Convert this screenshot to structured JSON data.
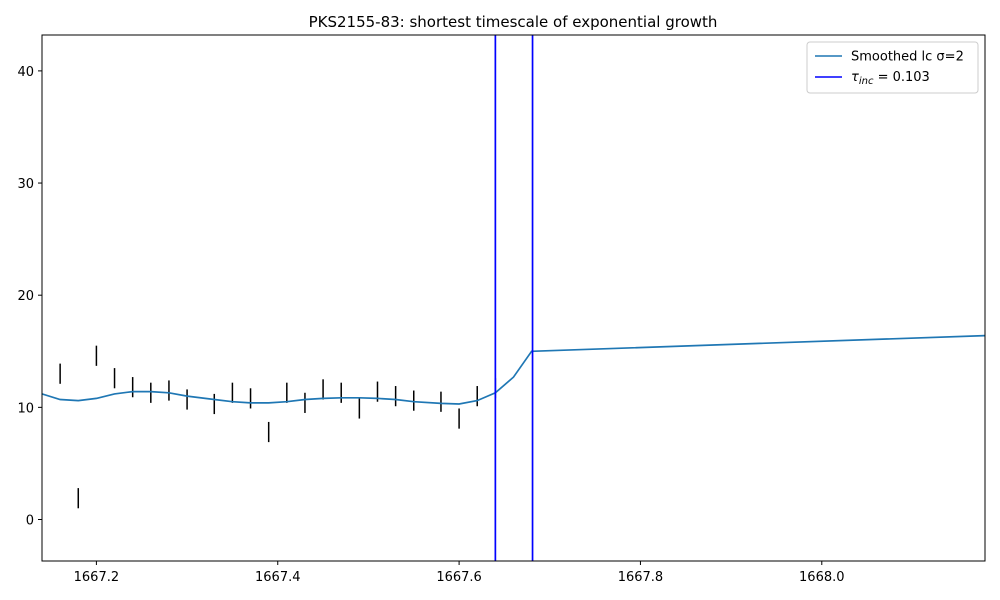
{
  "chart_data": {
    "type": "line",
    "title": "PKS2155-83: shortest timescale of exponential growth",
    "xlabel": "",
    "ylabel": "",
    "xlim": [
      1667.14,
      1668.18
    ],
    "ylim": [
      -3.7,
      43.2
    ],
    "x_ticks": [
      1667.2,
      1667.4,
      1667.6,
      1667.8,
      1668.0
    ],
    "x_tick_labels": [
      "1667.2",
      "1667.4",
      "1667.6",
      "1667.8",
      "1668.0"
    ],
    "y_ticks": [
      0,
      10,
      20,
      30,
      40
    ],
    "y_tick_labels": [
      "0",
      "10",
      "20",
      "30",
      "40"
    ],
    "legend_position": "top-right",
    "error_bars": {
      "color": "#000000",
      "points": [
        {
          "x": 1667.16,
          "low": 12.1,
          "high": 13.9
        },
        {
          "x": 1667.18,
          "low": 1.0,
          "high": 2.8
        },
        {
          "x": 1667.2,
          "low": 13.7,
          "high": 15.5
        },
        {
          "x": 1667.22,
          "low": 11.7,
          "high": 13.5
        },
        {
          "x": 1667.24,
          "low": 10.9,
          "high": 12.7
        },
        {
          "x": 1667.26,
          "low": 10.4,
          "high": 12.2
        },
        {
          "x": 1667.28,
          "low": 10.6,
          "high": 12.4
        },
        {
          "x": 1667.3,
          "low": 9.8,
          "high": 11.6
        },
        {
          "x": 1667.33,
          "low": 9.4,
          "high": 11.2
        },
        {
          "x": 1667.35,
          "low": 10.4,
          "high": 12.2
        },
        {
          "x": 1667.37,
          "low": 9.9,
          "high": 11.7
        },
        {
          "x": 1667.39,
          "low": 6.9,
          "high": 8.7
        },
        {
          "x": 1667.41,
          "low": 10.4,
          "high": 12.2
        },
        {
          "x": 1667.43,
          "low": 9.5,
          "high": 11.3
        },
        {
          "x": 1667.45,
          "low": 10.7,
          "high": 12.5
        },
        {
          "x": 1667.47,
          "low": 10.4,
          "high": 12.2
        },
        {
          "x": 1667.49,
          "low": 9.0,
          "high": 10.8
        },
        {
          "x": 1667.51,
          "low": 10.5,
          "high": 12.3
        },
        {
          "x": 1667.53,
          "low": 10.1,
          "high": 11.9
        },
        {
          "x": 1667.55,
          "low": 9.7,
          "high": 11.5
        },
        {
          "x": 1667.58,
          "low": 9.6,
          "high": 11.4
        },
        {
          "x": 1667.6,
          "low": 8.1,
          "high": 9.9
        },
        {
          "x": 1667.62,
          "low": 10.1,
          "high": 11.9
        },
        {
          "x": 1667.64,
          "low": 10.8,
          "high": 12.6
        }
      ]
    },
    "series": [
      {
        "name": "Smoothed lc σ=2",
        "color": "#1f77b4",
        "x": [
          1667.14,
          1667.16,
          1667.18,
          1667.2,
          1667.22,
          1667.24,
          1667.26,
          1667.28,
          1667.3,
          1667.33,
          1667.35,
          1667.37,
          1667.39,
          1667.41,
          1667.43,
          1667.45,
          1667.47,
          1667.49,
          1667.51,
          1667.53,
          1667.55,
          1667.58,
          1667.6,
          1667.62,
          1667.64,
          1667.66,
          1667.68,
          1668.18
        ],
        "y": [
          11.2,
          10.7,
          10.6,
          10.8,
          11.2,
          11.4,
          11.4,
          11.3,
          11.0,
          10.7,
          10.5,
          10.4,
          10.4,
          10.5,
          10.7,
          10.8,
          10.85,
          10.85,
          10.8,
          10.7,
          10.5,
          10.35,
          10.3,
          10.6,
          11.3,
          12.7,
          15.0,
          16.4
        ]
      }
    ],
    "vlines": [
      {
        "x": 1667.64,
        "color": "#0000ff"
      },
      {
        "x": 1667.681,
        "color": "#0000ff"
      }
    ],
    "legend": [
      {
        "label": "Smoothed lc σ=2",
        "color": "#1f77b4"
      },
      {
        "label_tau": "τ",
        "label_sub": "inc",
        "label_rest": " = 0.103",
        "color": "#0000ff"
      }
    ]
  }
}
